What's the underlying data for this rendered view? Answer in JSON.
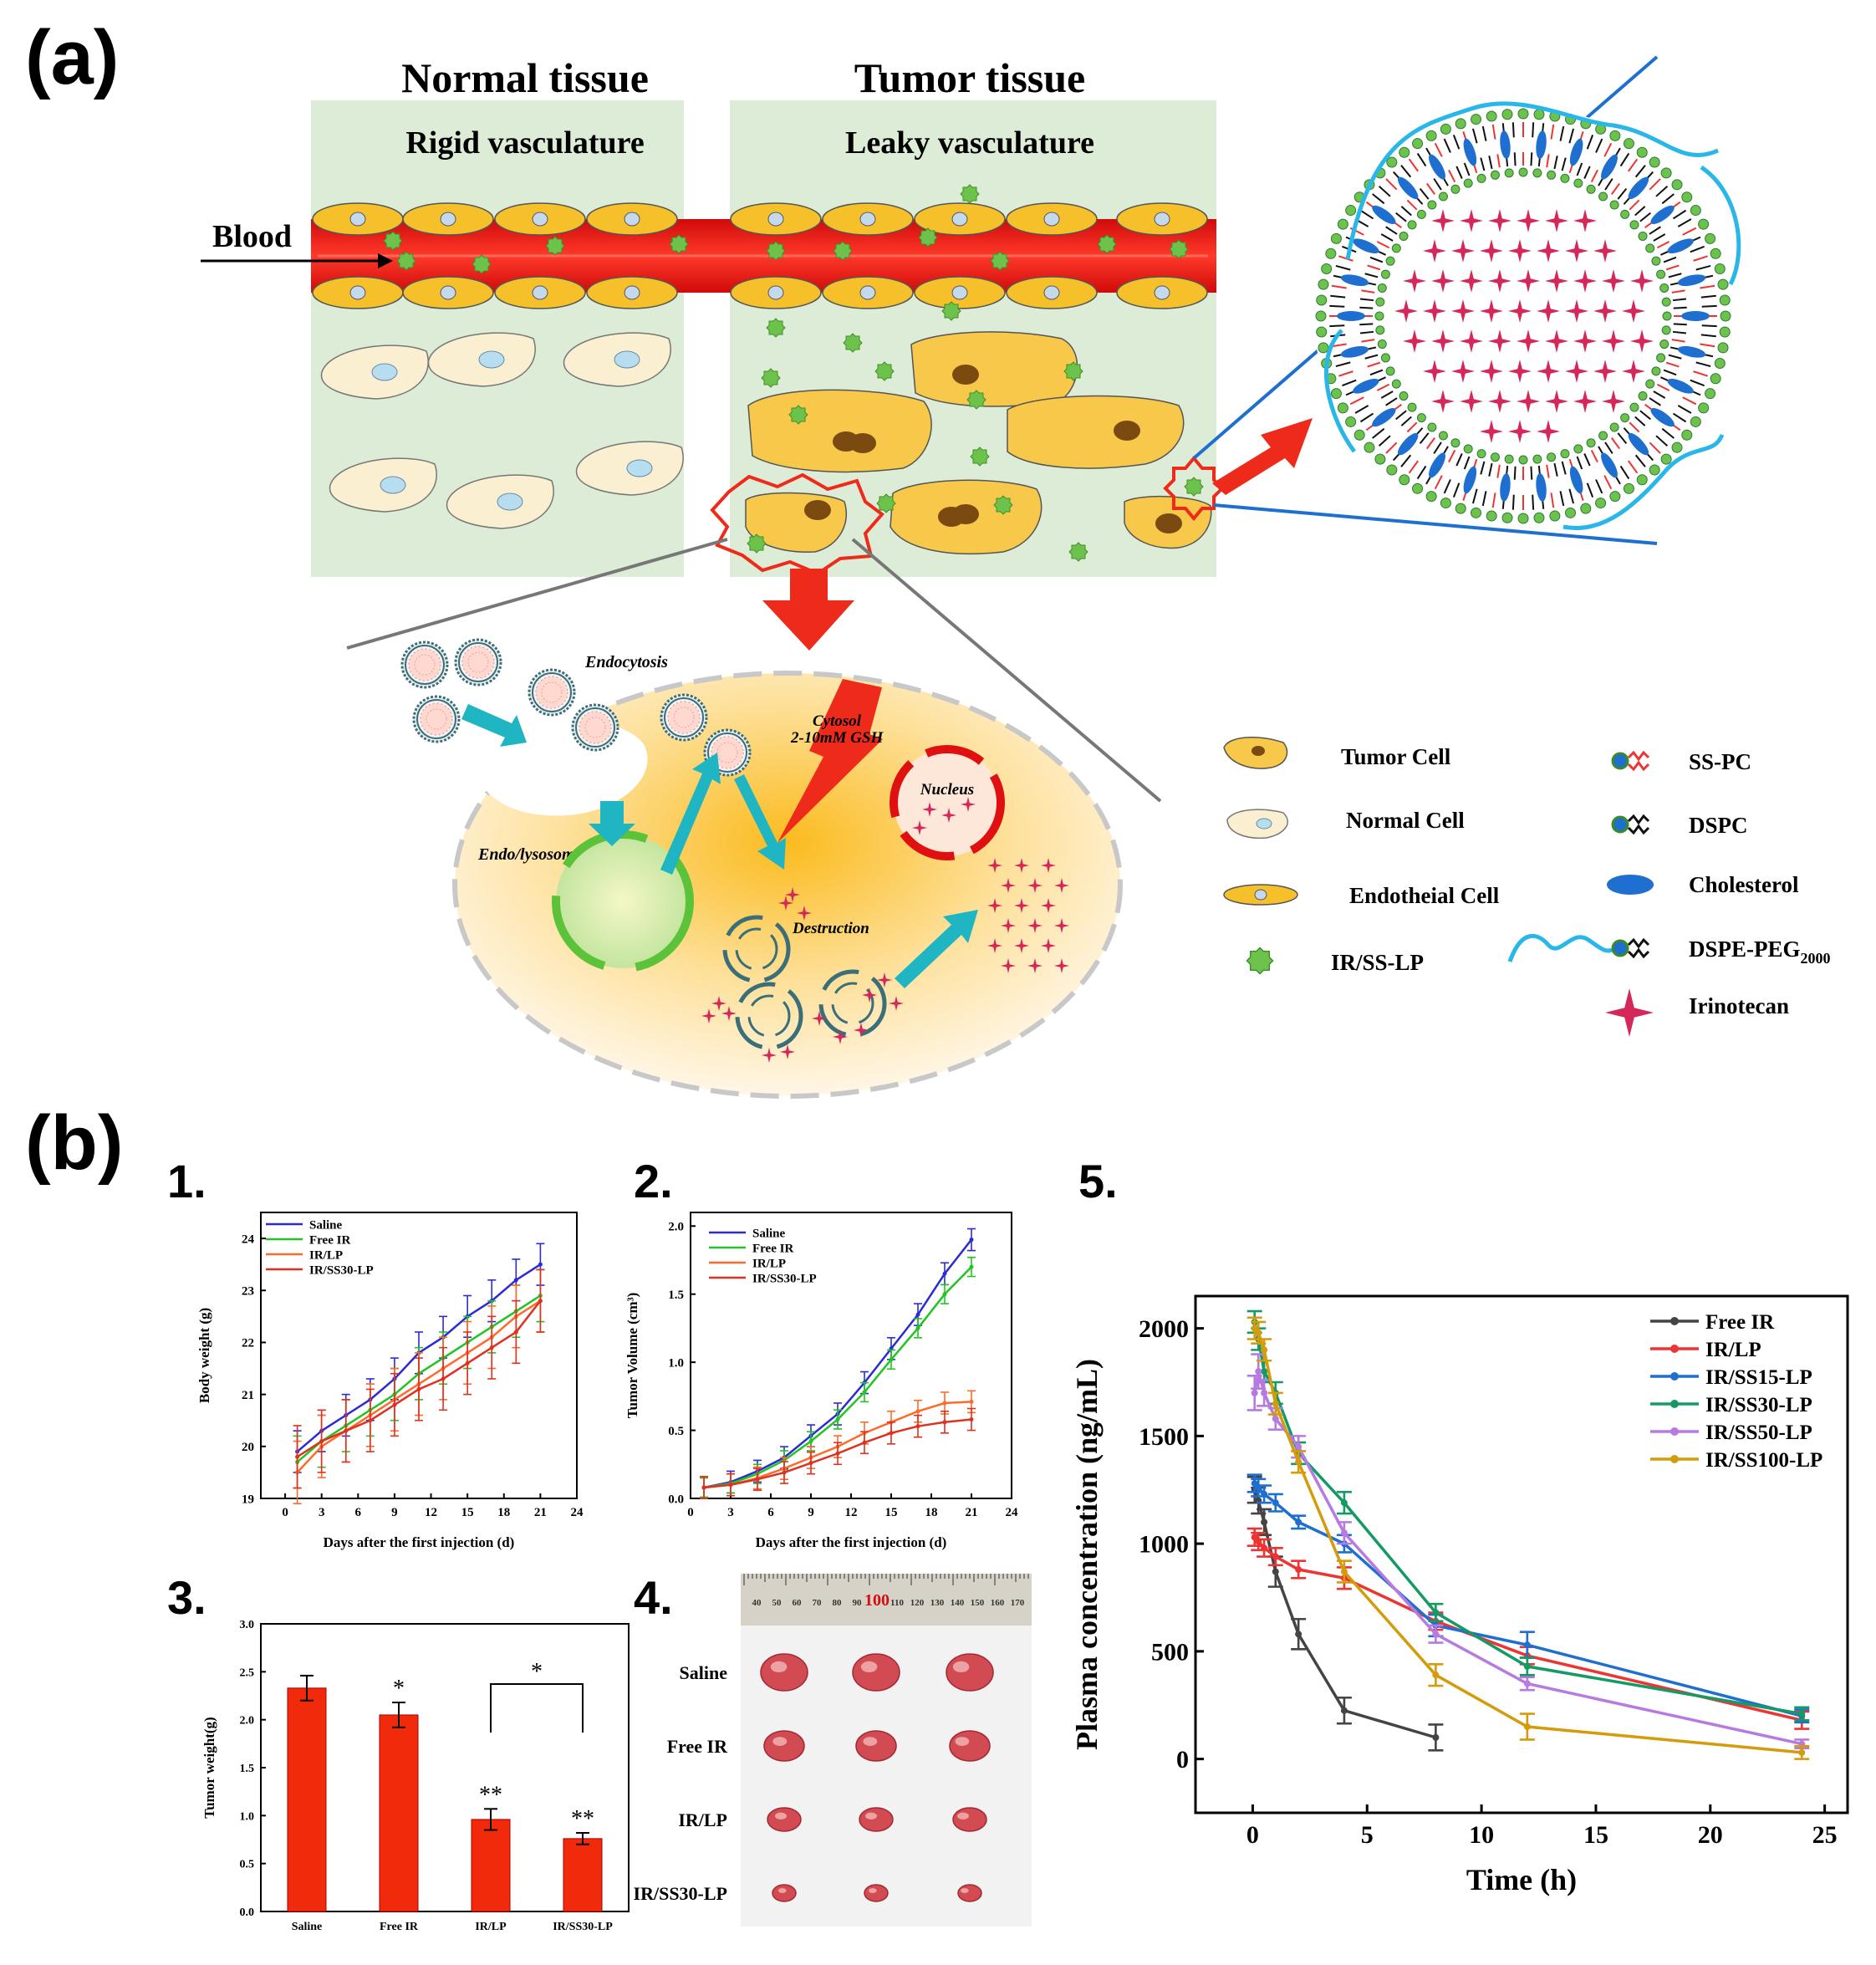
{
  "panel_labels": {
    "a": "(a)",
    "b": "(b)"
  },
  "sub_labels": {
    "c1": "1.",
    "c2": "2.",
    "c3": "3.",
    "c4": "4.",
    "c5": "5."
  },
  "schematic": {
    "normal_title": "Normal tissue",
    "tumor_title": "Tumor tissue",
    "normal_sub": "Rigid vasculature",
    "tumor_sub": "Leaky vasculature",
    "blood": "Blood",
    "endocytosis": "Endocytosis",
    "endo_lysosome": "Endo/lysosome",
    "cytosol_line1": "Cytosol",
    "cytosol_line2": "2-10mM GSH",
    "nucleus": "Nucleus",
    "destruction": "Destruction"
  },
  "legend": {
    "tumor_cell": "Tumor Cell",
    "normal_cell": "Normal Cell",
    "endothelial_cell": "Endotheial Cell",
    "ir_ss_lp": "IR/SS-LP",
    "ss_pc": "SS-PC",
    "dspc": "DSPC",
    "cholesterol": "Cholesterol",
    "dspe_peg": "DSPE-PEG",
    "dspe_peg_sub": "2000",
    "irinotecan": "Irinotecan"
  },
  "colors": {
    "vessel": "#e01010",
    "endothelial": "#f5c02a",
    "tissue_bg": "#dcecd6",
    "tumor_cell": "#f7c84a",
    "normal_cell": "#fbefd2",
    "lp_green": "#6cc24a",
    "arrow_red": "#ee2a1a",
    "arrow_teal": "#1fb5c2",
    "saline": "#2b2bd6",
    "free_ir": "#22c422",
    "ir_lp": "#ff6a2a",
    "ir_ss30_lp": "#e03020",
    "bar": "#f22a0c",
    "p_free_ir": "#444444",
    "p_ir_lp": "#ee3333",
    "p_ss15": "#1e6fd0",
    "p_ss30": "#159a66",
    "p_ss50": "#b77ae0",
    "p_ss100": "#d49b0a"
  },
  "chart_data": [
    {
      "id": "body_weight",
      "type": "line",
      "xlabel": "Days after the first injection (d)",
      "ylabel": "Body weight (g)",
      "xlim": [
        -2,
        24
      ],
      "ylim": [
        19,
        24.5
      ],
      "xticks": [
        0,
        3,
        6,
        9,
        12,
        15,
        18,
        21,
        24
      ],
      "yticks": [
        19,
        20,
        21,
        22,
        23,
        24
      ],
      "x": [
        1,
        3,
        5,
        7,
        9,
        11,
        13,
        15,
        17,
        19,
        21
      ],
      "series": [
        {
          "name": "Saline",
          "color_key": "saline",
          "values": [
            19.9,
            20.3,
            20.6,
            20.9,
            21.3,
            21.8,
            22.1,
            22.5,
            22.8,
            23.2,
            23.5
          ],
          "err": 0.4
        },
        {
          "name": "Free IR",
          "color_key": "free_ir",
          "values": [
            19.7,
            20.1,
            20.4,
            20.7,
            21.0,
            21.4,
            21.7,
            22.0,
            22.3,
            22.6,
            22.9
          ],
          "err": 0.5
        },
        {
          "name": "IR/LP",
          "color_key": "ir_lp",
          "values": [
            19.5,
            20.0,
            20.3,
            20.6,
            20.9,
            21.2,
            21.5,
            21.8,
            22.1,
            22.5,
            22.8
          ],
          "err": 0.6
        },
        {
          "name": "IR/SS30-LP",
          "color_key": "ir_ss30_lp",
          "values": [
            19.8,
            20.1,
            20.3,
            20.5,
            20.8,
            21.1,
            21.3,
            21.6,
            21.9,
            22.2,
            22.8
          ],
          "err": 0.6
        }
      ]
    },
    {
      "id": "tumor_volume",
      "type": "line",
      "xlabel": "Days after the first injection (d)",
      "ylabel": "Tumor Volume (cm³)",
      "xlim": [
        0,
        24
      ],
      "ylim": [
        0,
        2.1
      ],
      "xticks": [
        0,
        3,
        6,
        9,
        12,
        15,
        18,
        21,
        24
      ],
      "yticks": [
        0.0,
        0.5,
        1.0,
        1.5,
        2.0
      ],
      "x": [
        1,
        3,
        5,
        7,
        9,
        11,
        13,
        15,
        17,
        19,
        21
      ],
      "series": [
        {
          "name": "Saline",
          "color_key": "saline",
          "values": [
            0.08,
            0.12,
            0.2,
            0.3,
            0.46,
            0.62,
            0.85,
            1.1,
            1.35,
            1.65,
            1.9
          ],
          "err": 0.08
        },
        {
          "name": "Free IR",
          "color_key": "free_ir",
          "values": [
            0.08,
            0.11,
            0.18,
            0.28,
            0.42,
            0.58,
            0.78,
            1.02,
            1.25,
            1.5,
            1.7
          ],
          "err": 0.07
        },
        {
          "name": "IR/LP",
          "color_key": "ir_lp",
          "values": [
            0.08,
            0.1,
            0.15,
            0.22,
            0.3,
            0.38,
            0.48,
            0.56,
            0.64,
            0.7,
            0.71
          ],
          "err": 0.08
        },
        {
          "name": "IR/SS30-LP",
          "color_key": "ir_ss30_lp",
          "values": [
            0.08,
            0.1,
            0.14,
            0.19,
            0.26,
            0.33,
            0.41,
            0.48,
            0.53,
            0.56,
            0.58
          ],
          "err": 0.08
        }
      ]
    },
    {
      "id": "tumor_weight",
      "type": "bar",
      "ylabel": "Tumor weight(g)",
      "ylim": [
        0,
        3.0
      ],
      "yticks": [
        0.0,
        0.5,
        1.0,
        1.5,
        2.0,
        2.5,
        3.0
      ],
      "categories": [
        "Saline",
        "Free IR",
        "IR/LP",
        "IR/SS30-LP"
      ],
      "values": [
        2.33,
        2.05,
        0.96,
        0.76
      ],
      "errors": [
        0.13,
        0.13,
        0.11,
        0.06
      ],
      "annotations": [
        "",
        "*",
        "**",
        "**"
      ],
      "bracket_label": "*"
    },
    {
      "id": "plasma_concentration",
      "type": "line",
      "xlabel": "Time (h)",
      "ylabel": "Plasma concentration (ng/mL)",
      "xlim": [
        -2.5,
        26
      ],
      "ylim": [
        -250,
        2150
      ],
      "xticks": [
        0,
        5,
        10,
        15,
        20,
        25
      ],
      "yticks": [
        0,
        500,
        1000,
        1500,
        2000
      ],
      "series": [
        {
          "name": "Free IR",
          "color_key": "p_free_ir",
          "x": [
            0.083,
            0.25,
            0.5,
            1,
            2,
            4,
            8
          ],
          "values": [
            1250,
            1200,
            1100,
            870,
            580,
            225,
            100
          ],
          "err": [
            60,
            60,
            60,
            70,
            70,
            60,
            60
          ]
        },
        {
          "name": "IR/LP",
          "color_key": "p_ir_lp",
          "x": [
            0.083,
            0.25,
            0.5,
            1,
            2,
            4,
            8,
            12,
            24
          ],
          "values": [
            1030,
            1010,
            980,
            940,
            880,
            840,
            640,
            480,
            180
          ],
          "err": [
            40,
            40,
            40,
            40,
            40,
            50,
            40,
            40,
            40
          ]
        },
        {
          "name": "IR/SS15-LP",
          "color_key": "p_ss15",
          "x": [
            0.083,
            0.25,
            0.5,
            1,
            2,
            4,
            8,
            12,
            24
          ],
          "values": [
            1280,
            1260,
            1230,
            1190,
            1100,
            1000,
            620,
            530,
            200
          ],
          "err": [
            40,
            40,
            40,
            40,
            30,
            40,
            50,
            60,
            30
          ]
        },
        {
          "name": "IR/SS30-LP",
          "color_key": "p_ss30",
          "x": [
            0.083,
            0.25,
            0.5,
            1,
            2,
            4,
            8,
            12,
            24
          ],
          "values": [
            2030,
            1950,
            1800,
            1700,
            1420,
            1190,
            680,
            430,
            210
          ],
          "err": [
            50,
            50,
            50,
            50,
            50,
            50,
            40,
            40,
            30
          ]
        },
        {
          "name": "IR/SS50-LP",
          "color_key": "p_ss50",
          "x": [
            0.083,
            0.25,
            0.5,
            1,
            2,
            4,
            8,
            12,
            24
          ],
          "values": [
            1700,
            1800,
            1700,
            1580,
            1450,
            1050,
            580,
            350,
            70
          ],
          "err": [
            80,
            80,
            60,
            50,
            50,
            50,
            40,
            30,
            20
          ]
        },
        {
          "name": "IR/SS100-LP",
          "color_key": "p_ss100",
          "x": [
            0.083,
            0.25,
            0.5,
            1,
            2,
            4,
            8,
            12,
            24
          ],
          "values": [
            2000,
            1980,
            1900,
            1650,
            1380,
            870,
            390,
            150,
            30
          ],
          "err": [
            50,
            50,
            50,
            50,
            50,
            50,
            50,
            60,
            30
          ]
        }
      ]
    }
  ],
  "photo": {
    "rows": [
      "Saline",
      "Free IR",
      "IR/LP",
      "IR/SS30-LP"
    ],
    "ruler_numbers": [
      "40",
      "50",
      "60",
      "70",
      "80",
      "90",
      "100",
      "110",
      "120",
      "130",
      "140",
      "150",
      "160",
      "170"
    ],
    "ruler_highlight": "100"
  }
}
